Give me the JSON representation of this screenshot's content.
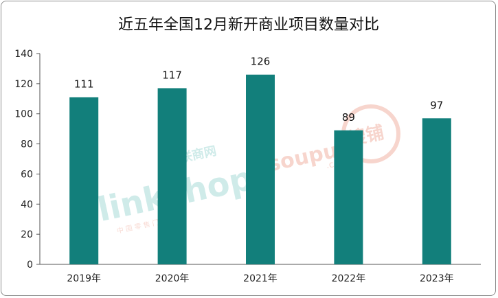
{
  "chart_data": {
    "type": "bar",
    "title": "近五年全国12月新开商业项目数量对比",
    "categories": [
      "2019年",
      "2020年",
      "2021年",
      "2022年",
      "2023年"
    ],
    "values": [
      111,
      117,
      126,
      89,
      97
    ],
    "xlabel": "",
    "ylabel": "",
    "ylim": [
      0,
      140
    ],
    "yticks": [
      0,
      20,
      40,
      60,
      80,
      100,
      120,
      140
    ],
    "bar_color": "#127f7b",
    "grid": false,
    "legend": "none"
  },
  "watermarks": {
    "linkshop": "linkshop",
    "linkshop_cn": "联商网",
    "linkshop_sub": "中 国 零 售 门 户 网 站",
    "soupu": "soupu",
    "soupu_com": ".com",
    "soupu_cn": "搜铺"
  }
}
